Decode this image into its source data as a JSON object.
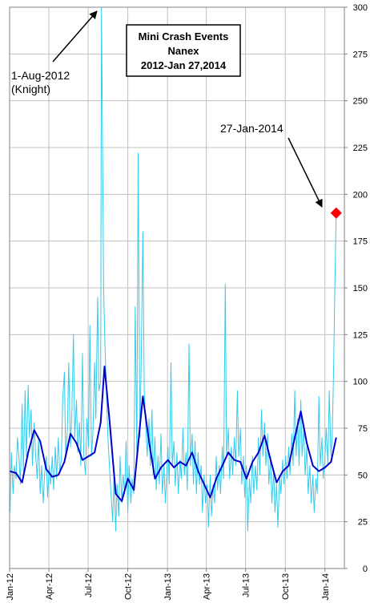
{
  "chart_data": {
    "type": "line",
    "title": [
      "Mini Crash Events",
      "Nanex",
      "2012-Jan 27,2014"
    ],
    "xlabel": "",
    "ylabel": "",
    "ylim": [
      0,
      300
    ],
    "yticks": [
      0,
      25,
      50,
      75,
      100,
      125,
      150,
      175,
      200,
      225,
      250,
      275,
      300
    ],
    "xlim": [
      "2012-01-01",
      "2014-02-15"
    ],
    "xticks": [
      {
        "label": "Jan-12",
        "date": "2012-01-01"
      },
      {
        "label": "Apr-12",
        "date": "2012-04-01"
      },
      {
        "label": "Jul-12",
        "date": "2012-07-01"
      },
      {
        "label": "Oct-12",
        "date": "2012-10-01"
      },
      {
        "label": "Jan-13",
        "date": "2013-01-01"
      },
      {
        "label": "Apr-13",
        "date": "2013-04-01"
      },
      {
        "label": "Jul-13",
        "date": "2013-07-01"
      },
      {
        "label": "Oct-13",
        "date": "2013-10-01"
      },
      {
        "label": "Jan-14",
        "date": "2014-01-01"
      }
    ],
    "grid": true,
    "y_axis_side": "right",
    "series": [
      {
        "role": "daily",
        "color": "#33ccee",
        "points": [
          [
            "2012-01-02",
            30
          ],
          [
            "2012-01-05",
            62
          ],
          [
            "2012-01-09",
            40
          ],
          [
            "2012-01-12",
            55
          ],
          [
            "2012-01-16",
            48
          ],
          [
            "2012-01-19",
            70
          ],
          [
            "2012-01-23",
            58
          ],
          [
            "2012-01-26",
            45
          ],
          [
            "2012-01-30",
            88
          ],
          [
            "2012-02-02",
            52
          ],
          [
            "2012-02-06",
            95
          ],
          [
            "2012-02-09",
            60
          ],
          [
            "2012-02-13",
            98
          ],
          [
            "2012-02-16",
            70
          ],
          [
            "2012-02-20",
            85
          ],
          [
            "2012-02-23",
            55
          ],
          [
            "2012-02-27",
            78
          ],
          [
            "2012-03-01",
            62
          ],
          [
            "2012-03-05",
            48
          ],
          [
            "2012-03-08",
            70
          ],
          [
            "2012-03-12",
            40
          ],
          [
            "2012-03-15",
            55
          ],
          [
            "2012-03-19",
            35
          ],
          [
            "2012-03-22",
            50
          ],
          [
            "2012-03-26",
            60
          ],
          [
            "2012-03-29",
            38
          ],
          [
            "2012-04-02",
            55
          ],
          [
            "2012-04-05",
            45
          ],
          [
            "2012-04-09",
            60
          ],
          [
            "2012-04-12",
            42
          ],
          [
            "2012-04-16",
            65
          ],
          [
            "2012-04-19",
            48
          ],
          [
            "2012-04-23",
            70
          ],
          [
            "2012-04-26",
            52
          ],
          [
            "2012-04-30",
            58
          ],
          [
            "2012-05-03",
            90
          ],
          [
            "2012-05-07",
            105
          ],
          [
            "2012-05-10",
            60
          ],
          [
            "2012-05-14",
            75
          ],
          [
            "2012-05-17",
            110
          ],
          [
            "2012-05-21",
            65
          ],
          [
            "2012-05-24",
            80
          ],
          [
            "2012-05-28",
            125
          ],
          [
            "2012-05-31",
            70
          ],
          [
            "2012-06-04",
            90
          ],
          [
            "2012-06-07",
            62
          ],
          [
            "2012-06-11",
            78
          ],
          [
            "2012-06-14",
            55
          ],
          [
            "2012-06-18",
            115
          ],
          [
            "2012-06-21",
            60
          ],
          [
            "2012-06-25",
            50
          ],
          [
            "2012-06-28",
            80
          ],
          [
            "2012-07-02",
            65
          ],
          [
            "2012-07-05",
            130
          ],
          [
            "2012-07-09",
            60
          ],
          [
            "2012-07-12",
            72
          ],
          [
            "2012-07-16",
            110
          ],
          [
            "2012-07-19",
            80
          ],
          [
            "2012-07-23",
            145
          ],
          [
            "2012-07-26",
            95
          ],
          [
            "2012-07-30",
            100
          ],
          [
            "2012-08-01",
            300
          ],
          [
            "2012-08-03",
            240
          ],
          [
            "2012-08-06",
            150
          ],
          [
            "2012-08-09",
            120
          ],
          [
            "2012-08-13",
            90
          ],
          [
            "2012-08-16",
            70
          ],
          [
            "2012-08-20",
            52
          ],
          [
            "2012-08-23",
            40
          ],
          [
            "2012-08-27",
            25
          ],
          [
            "2012-08-30",
            50
          ],
          [
            "2012-09-03",
            20
          ],
          [
            "2012-09-06",
            45
          ],
          [
            "2012-09-10",
            28
          ],
          [
            "2012-09-13",
            60
          ],
          [
            "2012-09-17",
            35
          ],
          [
            "2012-09-20",
            50
          ],
          [
            "2012-09-24",
            40
          ],
          [
            "2012-09-27",
            68
          ],
          [
            "2012-10-01",
            30
          ],
          [
            "2012-10-04",
            55
          ],
          [
            "2012-10-08",
            35
          ],
          [
            "2012-10-11",
            48
          ],
          [
            "2012-10-15",
            40
          ],
          [
            "2012-10-18",
            140
          ],
          [
            "2012-10-22",
            60
          ],
          [
            "2012-10-25",
            222
          ],
          [
            "2012-10-29",
            70
          ],
          [
            "2012-11-01",
            110
          ],
          [
            "2012-11-05",
            180
          ],
          [
            "2012-11-08",
            95
          ],
          [
            "2012-11-12",
            75
          ],
          [
            "2012-11-15",
            60
          ],
          [
            "2012-11-19",
            80
          ],
          [
            "2012-11-22",
            55
          ],
          [
            "2012-11-26",
            85
          ],
          [
            "2012-11-29",
            50
          ],
          [
            "2012-12-03",
            70
          ],
          [
            "2012-12-06",
            42
          ],
          [
            "2012-12-10",
            60
          ],
          [
            "2012-12-13",
            45
          ],
          [
            "2012-12-17",
            72
          ],
          [
            "2012-12-20",
            40
          ],
          [
            "2012-12-24",
            55
          ],
          [
            "2012-12-27",
            35
          ],
          [
            "2013-01-02",
            65
          ],
          [
            "2013-01-05",
            45
          ],
          [
            "2013-01-09",
            110
          ],
          [
            "2013-01-12",
            55
          ],
          [
            "2013-01-16",
            68
          ],
          [
            "2013-01-19",
            44
          ],
          [
            "2013-01-23",
            62
          ],
          [
            "2013-01-26",
            40
          ],
          [
            "2013-01-30",
            58
          ],
          [
            "2013-02-02",
            48
          ],
          [
            "2013-02-06",
            75
          ],
          [
            "2013-02-09",
            50
          ],
          [
            "2013-02-13",
            62
          ],
          [
            "2013-02-16",
            42
          ],
          [
            "2013-02-20",
            120
          ],
          [
            "2013-02-23",
            55
          ],
          [
            "2013-02-27",
            72
          ],
          [
            "2013-03-02",
            45
          ],
          [
            "2013-03-06",
            68
          ],
          [
            "2013-03-09",
            40
          ],
          [
            "2013-03-13",
            62
          ],
          [
            "2013-03-16",
            45
          ],
          [
            "2013-03-20",
            55
          ],
          [
            "2013-03-23",
            30
          ],
          [
            "2013-03-27",
            50
          ],
          [
            "2013-03-30",
            35
          ],
          [
            "2013-04-03",
            45
          ],
          [
            "2013-04-06",
            22
          ],
          [
            "2013-04-10",
            50
          ],
          [
            "2013-04-13",
            28
          ],
          [
            "2013-04-17",
            45
          ],
          [
            "2013-04-20",
            35
          ],
          [
            "2013-04-24",
            60
          ],
          [
            "2013-04-27",
            42
          ],
          [
            "2013-05-01",
            55
          ],
          [
            "2013-05-04",
            40
          ],
          [
            "2013-05-08",
            65
          ],
          [
            "2013-05-11",
            48
          ],
          [
            "2013-05-15",
            152
          ],
          [
            "2013-05-18",
            60
          ],
          [
            "2013-05-22",
            75
          ],
          [
            "2013-05-25",
            48
          ],
          [
            "2013-05-29",
            65
          ],
          [
            "2013-06-01",
            50
          ],
          [
            "2013-06-05",
            70
          ],
          [
            "2013-06-08",
            55
          ],
          [
            "2013-06-12",
            95
          ],
          [
            "2013-06-15",
            60
          ],
          [
            "2013-06-19",
            75
          ],
          [
            "2013-06-22",
            45
          ],
          [
            "2013-06-26",
            60
          ],
          [
            "2013-06-29",
            38
          ],
          [
            "2013-07-03",
            55
          ],
          [
            "2013-07-06",
            20
          ],
          [
            "2013-07-10",
            48
          ],
          [
            "2013-07-13",
            35
          ],
          [
            "2013-07-17",
            60
          ],
          [
            "2013-07-20",
            40
          ],
          [
            "2013-07-24",
            55
          ],
          [
            "2013-07-27",
            42
          ],
          [
            "2013-07-31",
            70
          ],
          [
            "2013-08-03",
            50
          ],
          [
            "2013-08-07",
            85
          ],
          [
            "2013-08-10",
            60
          ],
          [
            "2013-08-14",
            78
          ],
          [
            "2013-08-17",
            55
          ],
          [
            "2013-08-21",
            72
          ],
          [
            "2013-08-24",
            45
          ],
          [
            "2013-08-28",
            60
          ],
          [
            "2013-08-31",
            35
          ],
          [
            "2013-09-04",
            52
          ],
          [
            "2013-09-07",
            30
          ],
          [
            "2013-09-11",
            45
          ],
          [
            "2013-09-14",
            22
          ],
          [
            "2013-09-18",
            50
          ],
          [
            "2013-09-21",
            40
          ],
          [
            "2013-09-25",
            58
          ],
          [
            "2013-09-28",
            45
          ],
          [
            "2013-10-02",
            60
          ],
          [
            "2013-10-05",
            48
          ],
          [
            "2013-10-09",
            65
          ],
          [
            "2013-10-12",
            50
          ],
          [
            "2013-10-16",
            72
          ],
          [
            "2013-10-19",
            55
          ],
          [
            "2013-10-23",
            95
          ],
          [
            "2013-10-26",
            60
          ],
          [
            "2013-10-30",
            80
          ],
          [
            "2013-11-02",
            55
          ],
          [
            "2013-11-06",
            90
          ],
          [
            "2013-11-09",
            60
          ],
          [
            "2013-11-13",
            75
          ],
          [
            "2013-11-16",
            50
          ],
          [
            "2013-11-20",
            65
          ],
          [
            "2013-11-23",
            40
          ],
          [
            "2013-11-27",
            55
          ],
          [
            "2013-11-30",
            35
          ],
          [
            "2013-12-04",
            50
          ],
          [
            "2013-12-07",
            30
          ],
          [
            "2013-12-11",
            48
          ],
          [
            "2013-12-14",
            40
          ],
          [
            "2013-12-18",
            92
          ],
          [
            "2013-12-21",
            55
          ],
          [
            "2013-12-25",
            70
          ],
          [
            "2013-12-28",
            48
          ],
          [
            "2014-01-01",
            60
          ],
          [
            "2014-01-04",
            75
          ],
          [
            "2014-01-08",
            55
          ],
          [
            "2014-01-11",
            95
          ],
          [
            "2014-01-15",
            60
          ],
          [
            "2014-01-18",
            72
          ],
          [
            "2014-01-21",
            105
          ],
          [
            "2014-01-24",
            150
          ],
          [
            "2014-01-27",
            190
          ]
        ]
      },
      {
        "role": "average",
        "color": "#0000cc",
        "points": [
          [
            "2012-01-02",
            52
          ],
          [
            "2012-01-16",
            51
          ],
          [
            "2012-01-30",
            46
          ],
          [
            "2012-02-13",
            62
          ],
          [
            "2012-02-27",
            74
          ],
          [
            "2012-03-12",
            68
          ],
          [
            "2012-03-26",
            53
          ],
          [
            "2012-04-09",
            49
          ],
          [
            "2012-04-23",
            50
          ],
          [
            "2012-05-07",
            57
          ],
          [
            "2012-05-21",
            72
          ],
          [
            "2012-06-04",
            67
          ],
          [
            "2012-06-18",
            58
          ],
          [
            "2012-07-02",
            60
          ],
          [
            "2012-07-16",
            62
          ],
          [
            "2012-07-30",
            78
          ],
          [
            "2012-08-08",
            108
          ],
          [
            "2012-08-20",
            78
          ],
          [
            "2012-09-03",
            40
          ],
          [
            "2012-09-17",
            36
          ],
          [
            "2012-10-01",
            48
          ],
          [
            "2012-10-15",
            42
          ],
          [
            "2012-10-29",
            76
          ],
          [
            "2012-11-05",
            92
          ],
          [
            "2012-11-19",
            68
          ],
          [
            "2012-12-03",
            48
          ],
          [
            "2012-12-17",
            54
          ],
          [
            "2013-01-02",
            58
          ],
          [
            "2013-01-16",
            54
          ],
          [
            "2013-01-30",
            57
          ],
          [
            "2013-02-13",
            55
          ],
          [
            "2013-02-27",
            62
          ],
          [
            "2013-03-13",
            52
          ],
          [
            "2013-03-27",
            45
          ],
          [
            "2013-04-10",
            38
          ],
          [
            "2013-04-24",
            48
          ],
          [
            "2013-05-08",
            55
          ],
          [
            "2013-05-22",
            62
          ],
          [
            "2013-06-05",
            58
          ],
          [
            "2013-06-19",
            57
          ],
          [
            "2013-07-03",
            48
          ],
          [
            "2013-07-17",
            57
          ],
          [
            "2013-07-31",
            62
          ],
          [
            "2013-08-14",
            71
          ],
          [
            "2013-08-28",
            58
          ],
          [
            "2013-09-11",
            46
          ],
          [
            "2013-09-25",
            52
          ],
          [
            "2013-10-09",
            55
          ],
          [
            "2013-10-23",
            70
          ],
          [
            "2013-11-06",
            84
          ],
          [
            "2013-11-20",
            67
          ],
          [
            "2013-12-04",
            55
          ],
          [
            "2013-12-18",
            52
          ],
          [
            "2014-01-01",
            54
          ],
          [
            "2014-01-15",
            57
          ],
          [
            "2014-01-27",
            70
          ]
        ]
      }
    ],
    "highlight_point": {
      "date": "2014-01-27",
      "value": 190,
      "color": "#ff0000"
    },
    "annotations": [
      {
        "text": [
          "1-Aug-2012",
          "(Knight)"
        ],
        "target_date": "2012-08-01",
        "target_value": 300
      },
      {
        "text": [
          "27-Jan-2014"
        ],
        "target_date": "2014-01-27",
        "target_value": 190
      }
    ]
  }
}
